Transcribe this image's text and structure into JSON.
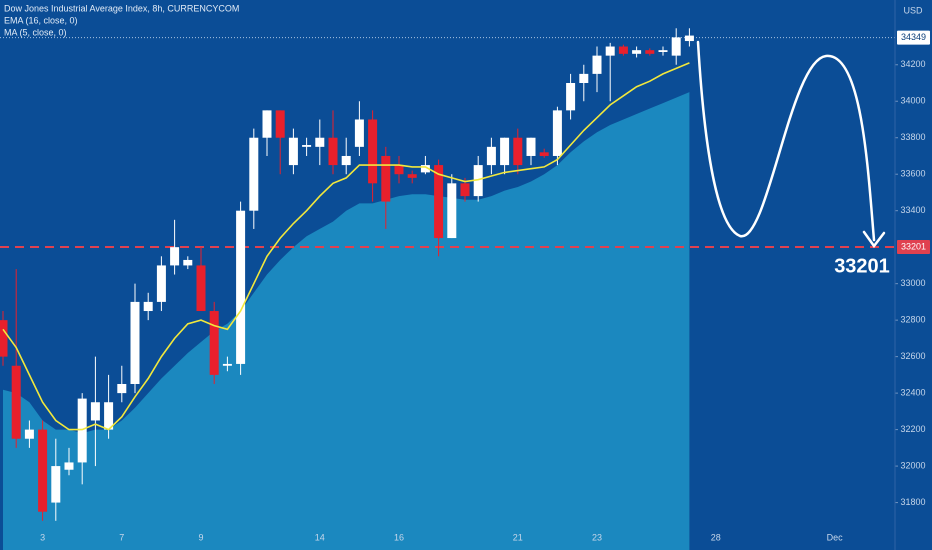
{
  "chart_data": {
    "type": "candlestick",
    "title": "Dow Jones Industrial Average Index, 8h, CURRENCYCOM",
    "y_axis_label": "USD",
    "categories": [
      null,
      null,
      null,
      "3",
      null,
      null,
      null,
      null,
      null,
      "7",
      null,
      null,
      null,
      null,
      null,
      "9",
      null,
      null,
      null,
      null,
      null,
      null,
      null,
      null,
      "14",
      null,
      null,
      null,
      null,
      null,
      "16",
      null,
      null,
      null,
      null,
      null,
      null,
      null,
      null,
      "21",
      null,
      null,
      null,
      null,
      null,
      "23",
      null,
      null,
      null,
      null,
      null,
      null,
      null,
      null,
      "28",
      null,
      null,
      null,
      null,
      null,
      null,
      null,
      null,
      "Dec",
      null,
      null,
      null,
      null
    ],
    "open": [
      32800,
      32550,
      32150,
      32200,
      31800,
      31980,
      32020,
      32250,
      32200,
      32400,
      32450,
      32850,
      32900,
      33100,
      33100,
      33100,
      32850,
      32550,
      32560,
      33400,
      33800,
      33950,
      33650,
      33750,
      33750,
      33800,
      33650,
      33750,
      33900,
      33700,
      33650,
      33600,
      33610,
      33650,
      33250,
      33550,
      33480,
      33650,
      33650,
      33800,
      33700,
      33720,
      33700,
      33950,
      34100,
      34150,
      34250,
      34300,
      34260,
      34280,
      34270,
      34250,
      34330,
      null,
      null,
      null,
      null,
      null,
      null,
      null,
      null,
      null,
      null,
      null,
      null,
      null,
      null,
      null
    ],
    "high": [
      32850,
      33080,
      32250,
      32250,
      32150,
      32100,
      32400,
      32600,
      32500,
      32550,
      33000,
      32950,
      33150,
      33350,
      33150,
      33200,
      32900,
      32600,
      33450,
      33850,
      33950,
      33950,
      33850,
      33800,
      33900,
      33950,
      33800,
      34000,
      33950,
      33750,
      33700,
      33620,
      33700,
      33680,
      33600,
      33580,
      33700,
      33800,
      33800,
      33850,
      33800,
      33740,
      33970,
      34150,
      34200,
      34300,
      34320,
      34310,
      34300,
      34290,
      34300,
      34400,
      34400,
      null,
      null,
      null,
      null,
      null,
      null,
      null,
      null,
      null,
      null,
      null,
      null,
      null,
      null,
      null
    ],
    "low": [
      32550,
      32100,
      32100,
      31700,
      31700,
      31950,
      31900,
      32000,
      32150,
      32350,
      32400,
      32800,
      32850,
      33050,
      33080,
      32850,
      32450,
      32520,
      32500,
      33300,
      33700,
      33600,
      33600,
      33700,
      33650,
      33600,
      33600,
      33700,
      33450,
      33300,
      33550,
      33550,
      33600,
      33150,
      33250,
      33450,
      33450,
      33600,
      33600,
      33600,
      33650,
      33690,
      33650,
      33900,
      34000,
      34050,
      34000,
      34250,
      34240,
      34250,
      34250,
      34200,
      34300,
      null,
      null,
      null,
      null,
      null,
      null,
      null,
      null,
      null,
      null,
      null,
      null,
      null,
      null,
      null
    ],
    "close": [
      32600,
      32150,
      32200,
      31750,
      32000,
      32020,
      32370,
      32350,
      32350,
      32450,
      32900,
      32900,
      33100,
      33200,
      33130,
      32850,
      32500,
      32560,
      33400,
      33800,
      33950,
      33800,
      33800,
      33760,
      33800,
      33650,
      33700,
      33900,
      33550,
      33450,
      33600,
      33580,
      33650,
      33250,
      33550,
      33480,
      33650,
      33750,
      33800,
      33650,
      33800,
      33700,
      33950,
      34100,
      34150,
      34250,
      34300,
      34260,
      34280,
      34260,
      34280,
      34350,
      34360,
      null,
      null,
      null,
      null,
      null,
      null,
      null,
      null,
      null,
      null,
      null,
      null,
      null,
      null,
      null
    ],
    "up_color": "#ffffff",
    "down_color": "#e8202c",
    "indicators": [
      {
        "name": "EMA (16, close, 0)",
        "color": "#f2e83c",
        "values": [
          32750,
          32650,
          32500,
          32350,
          32250,
          32200,
          32200,
          32230,
          32200,
          32270,
          32380,
          32480,
          32600,
          32700,
          32780,
          32800,
          32770,
          32750,
          32850,
          33000,
          33150,
          33250,
          33330,
          33400,
          33480,
          33550,
          33580,
          33650,
          33650,
          33650,
          33650,
          33640,
          33640,
          33600,
          33580,
          33560,
          33570,
          33590,
          33610,
          33620,
          33630,
          33640,
          33680,
          33760,
          33840,
          33910,
          33980,
          34030,
          34080,
          34110,
          34150,
          34180,
          34210,
          null,
          null,
          null,
          null,
          null,
          null,
          null,
          null,
          null,
          null,
          null,
          null,
          null,
          null,
          null
        ]
      },
      {
        "name": "MA (5, close, 0)",
        "color": "#1b88bf",
        "values": [
          32418,
          32400,
          32350,
          32250,
          32200,
          32200,
          32180,
          32200,
          32200,
          32250,
          32320,
          32400,
          32480,
          32550,
          32620,
          32680,
          32740,
          32780,
          32850,
          32950,
          33050,
          33130,
          33200,
          33260,
          33300,
          33340,
          33400,
          33440,
          33440,
          33460,
          33480,
          33490,
          33490,
          33480,
          33470,
          33460,
          33460,
          33480,
          33510,
          33530,
          33560,
          33600,
          33650,
          33720,
          33780,
          33830,
          33870,
          33900,
          33930,
          33960,
          33990,
          34020,
          34050,
          null,
          null,
          null,
          null,
          null,
          null,
          null,
          null,
          null,
          null,
          null,
          null,
          null,
          null,
          null
        ]
      }
    ],
    "ylim": [
      31540,
      34555
    ],
    "yticks": [
      31800,
      32000,
      32200,
      32400,
      32600,
      32800,
      33000,
      33400,
      33600,
      33800,
      34000,
      34200
    ],
    "price_lines": [
      {
        "value": 34349,
        "color": "#a9c3e2",
        "label_color": "#ffffff",
        "text_color": "#0b3f7a"
      },
      {
        "value": 33201,
        "color": "#e0414f",
        "label_color": "#e0414f",
        "text_color": "#ffffff"
      }
    ],
    "target": 33201
  }
}
